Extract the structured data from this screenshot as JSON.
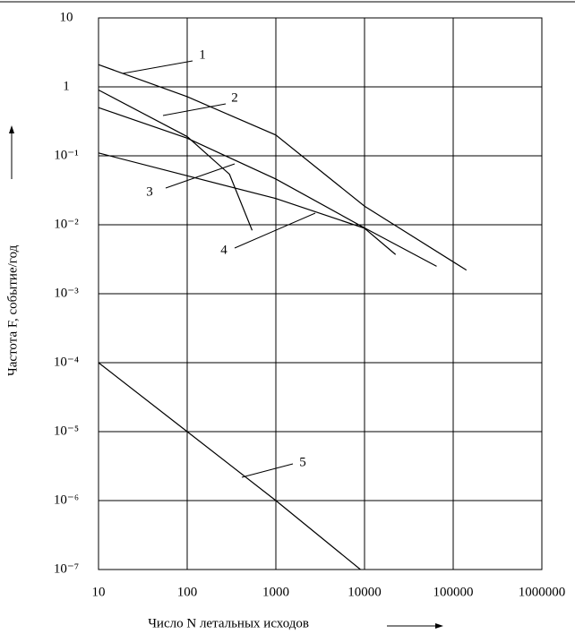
{
  "chart_data": {
    "type": "line",
    "xlabel": "Число N летальных исходов",
    "ylabel": "Частота F, событие/год",
    "xscale": "log",
    "yscale": "log",
    "grid": true,
    "xlim": [
      10,
      1000000
    ],
    "xticks": [
      10,
      100,
      1000,
      10000,
      100000,
      1000000
    ],
    "ylim": [
      1e-07,
      10
    ],
    "yticks": [
      10,
      1,
      {
        "value": 0.1,
        "label": "10⁻¹"
      },
      {
        "value": 0.01,
        "label": "10⁻²"
      },
      {
        "value": 0.001,
        "label": "10⁻³"
      },
      {
        "value": 0.0001,
        "label": "10⁻⁴"
      },
      {
        "value": 1e-05,
        "label": "10⁻⁵"
      },
      {
        "value": 1e-06,
        "label": "10⁻⁶"
      },
      {
        "value": 1e-07,
        "label": "10⁻⁷"
      }
    ],
    "series": [
      {
        "name": "1",
        "color": "#000000",
        "x": [
          10,
          100,
          1000,
          10000,
          141000
        ],
        "values": [
          2.1,
          0.72,
          0.2,
          0.0186,
          0.0022
        ]
      },
      {
        "name": "2",
        "color": "#000000",
        "x": [
          10,
          100,
          1000,
          10000,
          65000
        ],
        "values": [
          0.5,
          0.18,
          0.046,
          0.009,
          0.0025
        ]
      },
      {
        "name": "3",
        "color": "#000000",
        "x": [
          10,
          100,
          300,
          540
        ],
        "values": [
          0.9,
          0.19,
          0.054,
          0.0083
        ]
      },
      {
        "name": "4",
        "color": "#000000",
        "x": [
          10,
          1000,
          10000,
          22400
        ],
        "values": [
          0.11,
          0.024,
          0.0089,
          0.0037
        ]
      },
      {
        "name": "5",
        "color": "#000000",
        "x": [
          10,
          100,
          1000,
          9000
        ],
        "values": [
          0.0001,
          1e-05,
          1e-06,
          1e-07
        ]
      }
    ]
  }
}
